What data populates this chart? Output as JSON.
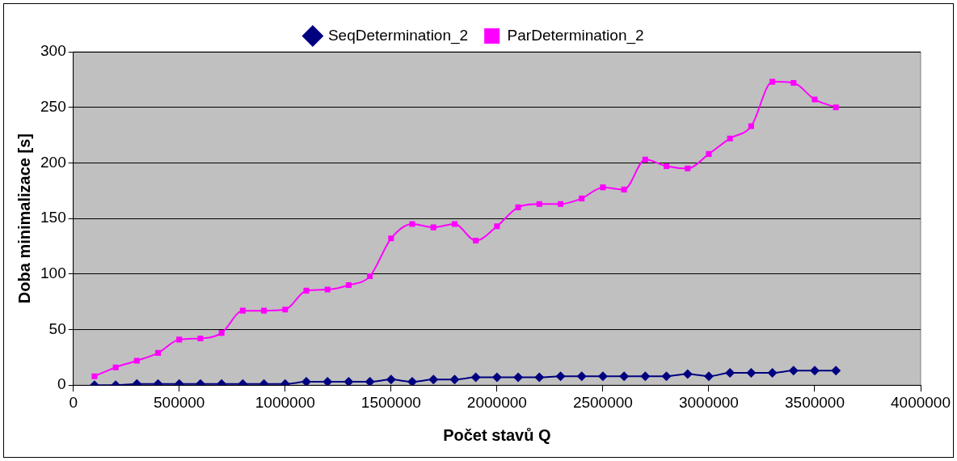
{
  "chart_data": {
    "type": "line",
    "xlabel": "Počet stavů Q",
    "ylabel": "Doba minimalizace [s]",
    "x": [
      100000,
      200000,
      300000,
      400000,
      500000,
      600000,
      700000,
      800000,
      900000,
      1000000,
      1100000,
      1200000,
      1300000,
      1400000,
      1500000,
      1600000,
      1700000,
      1800000,
      1900000,
      2000000,
      2100000,
      2200000,
      2300000,
      2400000,
      2500000,
      2600000,
      2700000,
      2800000,
      2900000,
      3000000,
      3100000,
      3200000,
      3300000,
      3400000,
      3500000,
      3600000
    ],
    "series": [
      {
        "name": "SeqDetermination_2",
        "color": "#000080",
        "marker": "diamond",
        "values": [
          0,
          0,
          1,
          1,
          1,
          1,
          1,
          1,
          1,
          1,
          3,
          3,
          3,
          3,
          5,
          3,
          5,
          5,
          7,
          7,
          7,
          7,
          8,
          8,
          8,
          8,
          8,
          8,
          10,
          8,
          11,
          11,
          11,
          13,
          13,
          13
        ]
      },
      {
        "name": "ParDetermination_2",
        "color": "#ff00ff",
        "marker": "square",
        "values": [
          8,
          16,
          22,
          29,
          41,
          42,
          47,
          67,
          67,
          68,
          85,
          86,
          90,
          98,
          132,
          145,
          142,
          145,
          130,
          143,
          160,
          163,
          163,
          168,
          178,
          176,
          203,
          197,
          195,
          208,
          222,
          233,
          273,
          272,
          257,
          250
        ]
      }
    ],
    "xlim": [
      0,
      4000000
    ],
    "xticks": [
      0,
      500000,
      1000000,
      1500000,
      2000000,
      2500000,
      3000000,
      3500000,
      4000000
    ],
    "ylim": [
      0,
      300
    ],
    "yticks": [
      0,
      50,
      100,
      150,
      200,
      250,
      300
    ],
    "grid": "y",
    "legend": "top",
    "line_style": "solid"
  }
}
